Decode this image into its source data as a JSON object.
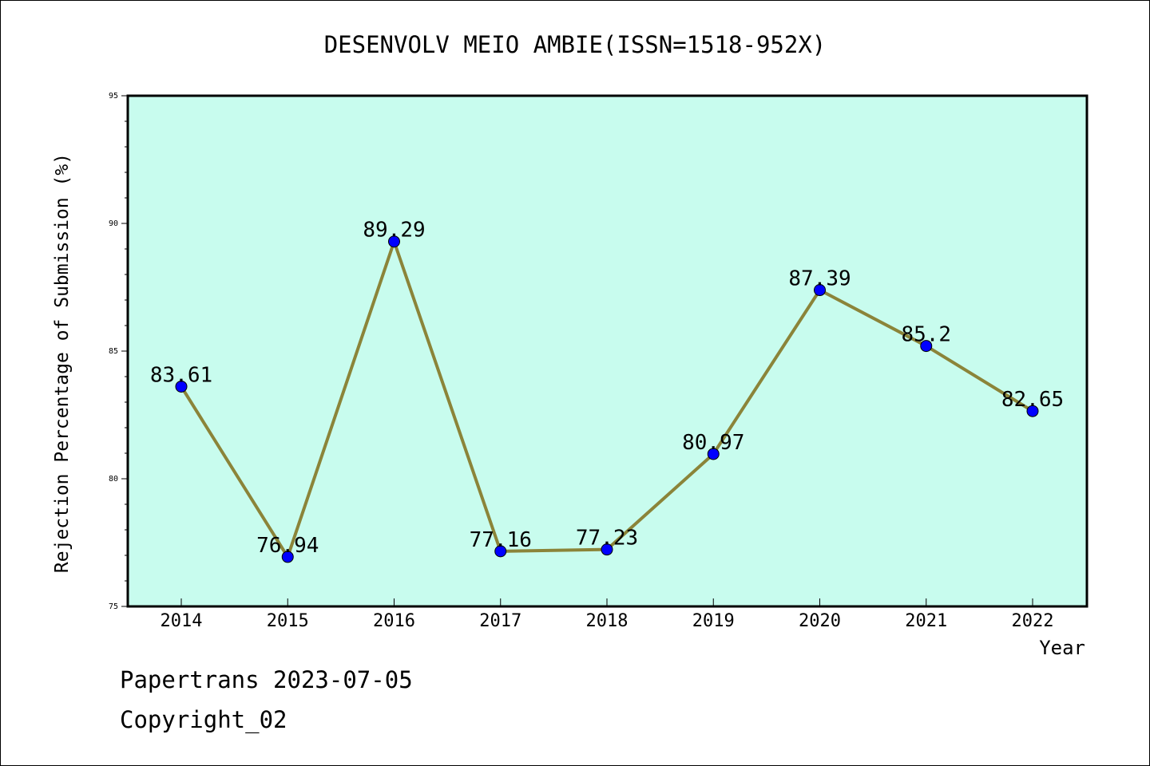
{
  "chart_data": {
    "type": "line",
    "title": "DESENVOLV MEIO AMBIE(ISSN=1518-952X)",
    "xlabel": "Year",
    "ylabel": "Rejection Percentage of Submission (%)",
    "x": [
      "2014",
      "2015",
      "2016",
      "2017",
      "2018",
      "2019",
      "2020",
      "2021",
      "2022"
    ],
    "series": [
      {
        "values": [
          83.61,
          76.94,
          89.29,
          77.16,
          77.23,
          80.97,
          87.39,
          85.2,
          82.65
        ],
        "labels": [
          "83.61",
          "76.94",
          "89.29",
          "77.16",
          "77.23",
          "80.97",
          "87.39",
          "85.2",
          "82.65"
        ]
      }
    ],
    "ylim": [
      75,
      95
    ],
    "yticks": [
      "75",
      "80",
      "85",
      "90",
      "95"
    ],
    "grid": false,
    "colors": {
      "background": "#c8fcee",
      "line": "#8b8439",
      "marker": "#0000ff"
    }
  },
  "footer": {
    "line1": "Papertrans 2023-07-05",
    "line2": "Copyright_02"
  }
}
